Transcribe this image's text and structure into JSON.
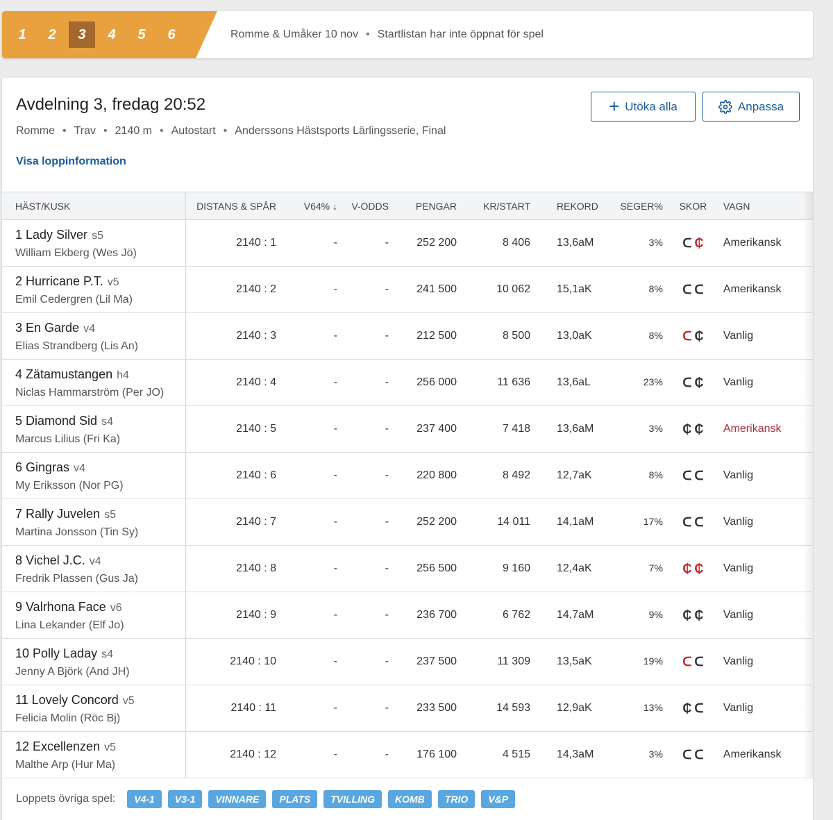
{
  "legs": [
    "1",
    "2",
    "3",
    "4",
    "5",
    "6"
  ],
  "active_leg": "3",
  "topbar": {
    "track_date": "Romme & Umåker 10 nov",
    "status": "Startlistan har inte öppnat för spel"
  },
  "race": {
    "title": "Avdelning 3,  fredag 20:52",
    "details": [
      "Romme",
      "Trav",
      "2140 m",
      "Autostart",
      "Anderssons Hästsports Lärlingsserie, Final"
    ],
    "info_link": "Visa loppinformation"
  },
  "buttons": {
    "expand_all": "Utöka alla",
    "customize": "Anpassa"
  },
  "columns": {
    "horse": "HÄST/KUSK",
    "distance": "DISTANS & SPÅR",
    "v64": "V64% ↓",
    "vodds": "V-ODDS",
    "money": "PENGAR",
    "kr_start": "KR/START",
    "record": "REKORD",
    "win_pct": "SEGER%",
    "shoes": "SKOR",
    "cart": "VAGN"
  },
  "rows": [
    {
      "horse": "1 Lady Silver",
      "age": "s5",
      "driver": "William Ekberg (Wes Jö)",
      "distance": "2140 : 1",
      "v64": "-",
      "vodds": "-",
      "money": "252 200",
      "kr_start": "8 406",
      "record": "13,6aM",
      "win_pct": "3%",
      "shoe_front": "ᑕ",
      "shoe_back": "₵",
      "cart": "Amerikansk"
    },
    {
      "horse": "2 Hurricane P.T.",
      "age": "v5",
      "driver": "Emil Cedergren (Lil Ma)",
      "distance": "2140 : 2",
      "v64": "-",
      "vodds": "-",
      "money": "241 500",
      "kr_start": "10 062",
      "record": "15,1aK",
      "win_pct": "8%",
      "shoe_front": "ᑕ",
      "shoe_back": "ᑕ",
      "cart": "Amerikansk"
    },
    {
      "horse": "3 En Garde",
      "age": "v4",
      "driver": "Elias Strandberg (Lis An)",
      "distance": "2140 : 3",
      "v64": "-",
      "vodds": "-",
      "money": "212 500",
      "kr_start": "8 500",
      "record": "13,0aK",
      "win_pct": "8%",
      "shoe_front": "ᑕ",
      "shoe_back": "₵",
      "cart": "Vanlig"
    },
    {
      "horse": "4 Zätamustangen",
      "age": "h4",
      "driver": "Niclas Hammarström (Per JO)",
      "distance": "2140 : 4",
      "v64": "-",
      "vodds": "-",
      "money": "256 000",
      "kr_start": "11 636",
      "record": "13,6aL",
      "win_pct": "23%",
      "shoe_front": "ᑕ",
      "shoe_back": "₵",
      "cart": "Vanlig"
    },
    {
      "horse": "5 Diamond Sid",
      "age": "s4",
      "driver": "Marcus Lilius (Fri Ka)",
      "distance": "2140 : 5",
      "v64": "-",
      "vodds": "-",
      "money": "237 400",
      "kr_start": "7 418",
      "record": "13,6aM",
      "win_pct": "3%",
      "shoe_front": "₵",
      "shoe_back": "₵",
      "cart": "Amerikansk"
    },
    {
      "horse": "6 Gingras",
      "age": "v4",
      "driver": "My Eriksson (Nor PG)",
      "distance": "2140 : 6",
      "v64": "-",
      "vodds": "-",
      "money": "220 800",
      "kr_start": "8 492",
      "record": "12,7aK",
      "win_pct": "8%",
      "shoe_front": "ᑕ",
      "shoe_back": "ᑕ",
      "cart": "Vanlig"
    },
    {
      "horse": "7 Rally Juvelen",
      "age": "s5",
      "driver": "Martina Jonsson (Tin Sy)",
      "distance": "2140 : 7",
      "v64": "-",
      "vodds": "-",
      "money": "252 200",
      "kr_start": "14 011",
      "record": "14,1aM",
      "win_pct": "17%",
      "shoe_front": "ᑕ",
      "shoe_back": "ᑕ",
      "cart": "Vanlig"
    },
    {
      "horse": "8 Vichel J.C.",
      "age": "v4",
      "driver": "Fredrik Plassen (Gus Ja)",
      "distance": "2140 : 8",
      "v64": "-",
      "vodds": "-",
      "money": "256 500",
      "kr_start": "9 160",
      "record": "12,4aK",
      "win_pct": "7%",
      "shoe_front": "₵",
      "shoe_back": "₵",
      "cart": "Vanlig"
    },
    {
      "horse": "9 Valrhona Face",
      "age": "v6",
      "driver": "Lina Lekander (Elf Jo)",
      "distance": "2140 : 9",
      "v64": "-",
      "vodds": "-",
      "money": "236 700",
      "kr_start": "6 762",
      "record": "14,7aM",
      "win_pct": "9%",
      "shoe_front": "₵",
      "shoe_back": "₵",
      "cart": "Vanlig"
    },
    {
      "horse": "10 Polly Laday",
      "age": "s4",
      "driver": "Jenny A Björk (And JH)",
      "distance": "2140 : 10",
      "v64": "-",
      "vodds": "-",
      "money": "237 500",
      "kr_start": "11 309",
      "record": "13,5aK",
      "win_pct": "19%",
      "shoe_front": "ᑕ",
      "shoe_back": "ᑕ",
      "cart": "Vanlig"
    },
    {
      "horse": "11 Lovely Concord",
      "age": "v5",
      "driver": "Felicia Molin (Röc Bj)",
      "distance": "2140 : 11",
      "v64": "-",
      "vodds": "-",
      "money": "233 500",
      "kr_start": "14 593",
      "record": "12,9aK",
      "win_pct": "13%",
      "shoe_front": "₵",
      "shoe_back": "ᑕ",
      "cart": "Vanlig"
    },
    {
      "horse": "12 Excellenzen",
      "age": "v5",
      "driver": "Malthe Arp (Hur Ma)",
      "distance": "2140 : 12",
      "v64": "-",
      "vodds": "-",
      "money": "176 100",
      "kr_start": "4 515",
      "record": "14,3aM",
      "win_pct": "3%",
      "shoe_front": "ᑕ",
      "shoe_back": "ᑕ",
      "cart": "Amerikansk"
    }
  ],
  "other_games": {
    "label": "Loppets övriga spel:",
    "games": [
      "V4-1",
      "V3-1",
      "VINNARE",
      "PLATS",
      "TVILLING",
      "KOMB",
      "TRIO",
      "V&P"
    ]
  },
  "colors": {
    "accent_orange": "#e8a13e",
    "active_leg": "#a5682c",
    "link_blue": "#1a5c9a",
    "badge_blue": "#5aa7e0",
    "shoe_change_red": "#c0272d"
  },
  "icons": {
    "expand_all": "plus-icon",
    "customize": "gear-icon",
    "sort": "arrow-down-icon",
    "shoes": "horseshoe-icon"
  },
  "highlights": {
    "red_front_shoe_rows": [
      2,
      7,
      9
    ],
    "red_back_shoe_rows": [
      0,
      7
    ],
    "red_cart_rows": [
      4
    ]
  }
}
